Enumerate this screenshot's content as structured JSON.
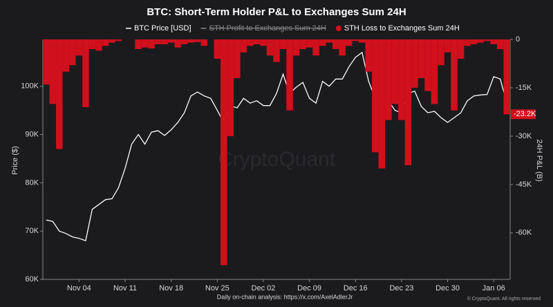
{
  "chart_data": {
    "type": "bar_line",
    "title": "BTC: Short-Term Holder P&L to Exchanges Sum 24H",
    "ylabel": "Price ($)",
    "y2label": "24H P&L (B)",
    "watermark": "CryptoQuant",
    "footer": "Daily on-chain analysis: https://x.com/AxelAdlerJr",
    "copyright": "© CryptoQuant. All rights reserved",
    "categories": [
      null,
      null,
      null,
      null,
      null,
      "Nov 04",
      null,
      null,
      null,
      null,
      null,
      null,
      "Nov 11",
      null,
      null,
      null,
      null,
      null,
      null,
      "Nov 18",
      null,
      null,
      null,
      null,
      null,
      null,
      "Nov 25",
      null,
      null,
      null,
      null,
      null,
      null,
      "Dec 02",
      null,
      null,
      null,
      null,
      null,
      null,
      "Dec 09",
      null,
      null,
      null,
      null,
      null,
      null,
      "Dec 16",
      null,
      null,
      null,
      null,
      null,
      null,
      "Dec 23",
      null,
      null,
      null,
      null,
      null,
      null,
      "Dec 30",
      null,
      null,
      null,
      null,
      null,
      null,
      "Jan 06",
      null,
      null
    ],
    "series": [
      {
        "name": "BTC Price [USD]",
        "type": "line",
        "color": "#ffffff",
        "values": [
          72300,
          72000,
          70000,
          69500,
          68800,
          68500,
          68000,
          74500,
          75500,
          76500,
          76700,
          79000,
          83000,
          88000,
          90000,
          88000,
          90500,
          90800,
          89800,
          91000,
          92500,
          94500,
          98000,
          98800,
          98000,
          97500,
          95000,
          92500,
          96000,
          95500,
          97500,
          96500,
          97000,
          96000,
          96000,
          98500,
          102500,
          98500,
          99800,
          100800,
          97500,
          96500,
          101000,
          100000,
          101500,
          101500,
          104000,
          106000,
          107000,
          101000,
          97500,
          97000,
          97000,
          95000,
          94500,
          98500,
          99000,
          95800,
          94500,
          94800,
          93500,
          92500,
          93500,
          94500,
          97000,
          98000,
          98200,
          98300,
          102000,
          101500,
          96500
        ]
      },
      {
        "name": "STH Profit to Exchanges Sum 24H",
        "color": "#8a8a8a",
        "visible": false
      },
      {
        "name": "STH Loss to Exchanges Sum 24H",
        "type": "bar",
        "color": "#d0101c",
        "axis": "y2",
        "values": [
          -14000,
          -20000,
          -34000,
          -10000,
          -8000,
          -5000,
          -21000,
          -3000,
          -3500,
          -2000,
          -1000,
          -500,
          0,
          0,
          -3000,
          -2500,
          -2800,
          -1500,
          -1500,
          -1000,
          -2500,
          -1500,
          -1000,
          -800,
          -2000,
          0,
          -6000,
          -70000,
          -30000,
          -12000,
          -4000,
          -2000,
          -1500,
          -2000,
          -5000,
          -7000,
          -3000,
          -22000,
          -5000,
          -3000,
          -2500,
          -5000,
          -2000,
          -1000,
          -3000,
          -5000,
          -2000,
          -500,
          -1000,
          -10000,
          -35000,
          -40000,
          -25000,
          -20000,
          -25000,
          -39000,
          -15000,
          -12000,
          -16000,
          -20000,
          -8000,
          -4000,
          -22000,
          -6000,
          -2000,
          -1500,
          -1000,
          -500,
          -1500,
          -3000,
          -23200
        ],
        "value_labels": [
          null,
          null,
          null,
          null,
          null,
          null,
          null,
          null,
          null,
          null,
          null,
          null,
          null,
          null,
          null,
          null,
          null,
          null,
          null,
          null,
          null,
          null,
          null,
          null,
          null,
          null,
          null,
          null,
          null,
          null,
          null,
          null,
          null,
          null,
          null,
          null,
          null,
          null,
          null,
          null,
          null,
          null,
          null,
          null,
          null,
          null,
          null,
          null,
          null,
          null,
          null,
          null,
          null,
          null,
          null,
          null,
          null,
          null,
          null,
          null,
          null,
          null,
          null,
          null,
          null,
          null,
          null,
          null,
          null,
          null,
          "-23.2K"
        ]
      }
    ],
    "ylim": [
      60000,
      109700
    ],
    "yticks": [
      {
        "value": 60000,
        "label": "60K"
      },
      {
        "value": 70000,
        "label": "70K"
      },
      {
        "value": 80000,
        "label": "80K"
      },
      {
        "value": 90000,
        "label": "90K"
      },
      {
        "value": 100000,
        "label": "100K"
      }
    ],
    "y2lim": [
      -74400,
      0
    ],
    "y2ticks": [
      0,
      {
        "value": -15000,
        "label": "-15K"
      },
      {
        "value": -30000,
        "label": "-30K"
      },
      {
        "value": -45000,
        "label": "-45K"
      },
      {
        "value": -60000,
        "label": "-60K"
      }
    ],
    "grid": false
  }
}
